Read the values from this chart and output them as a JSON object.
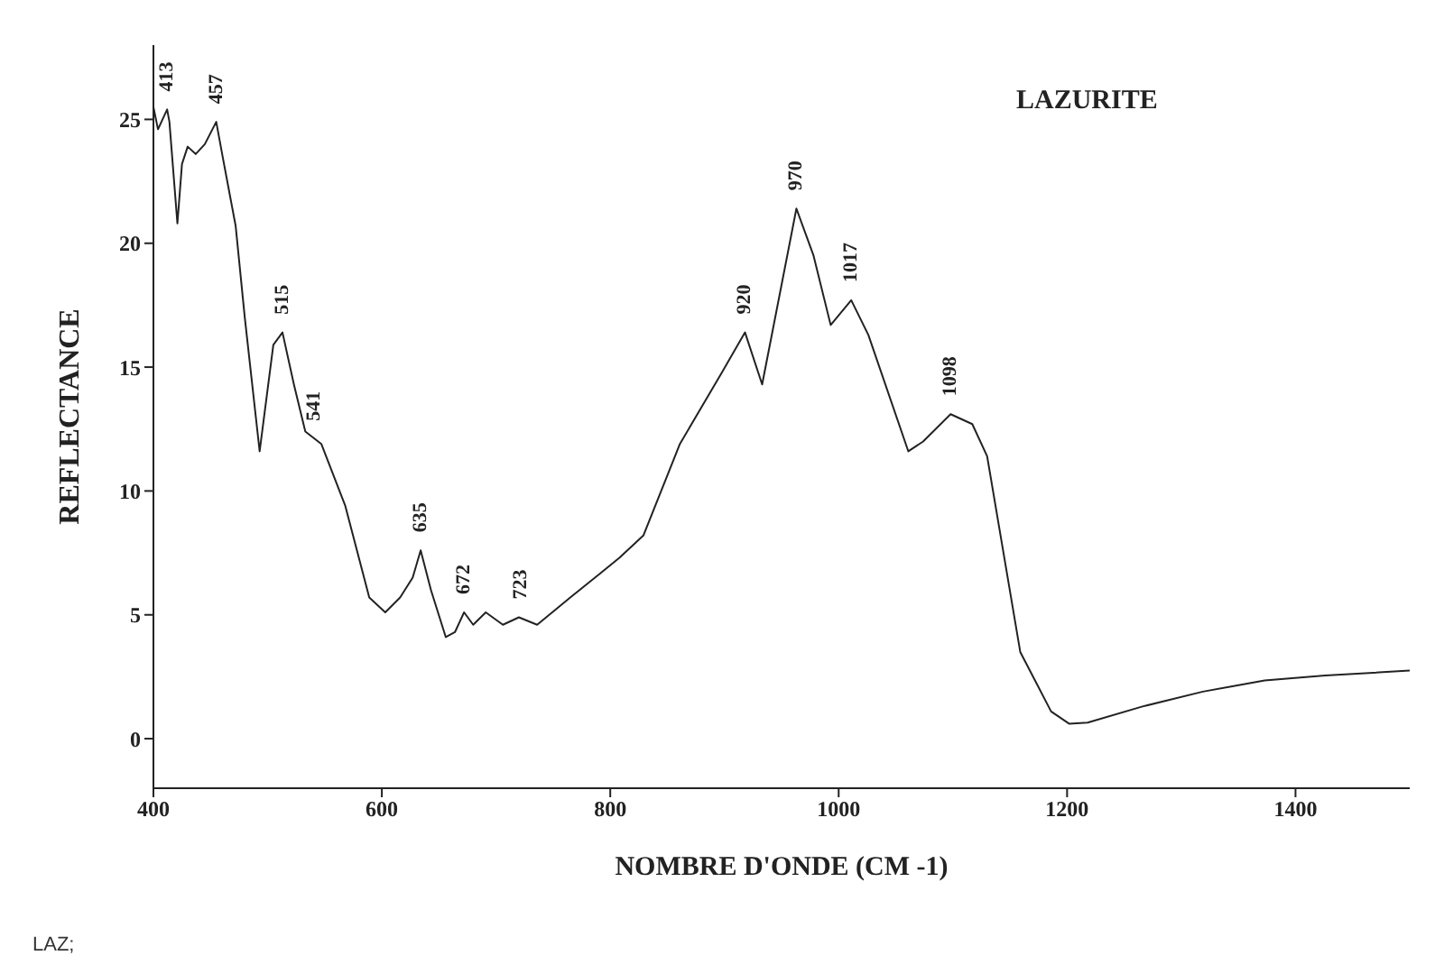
{
  "chart_data": {
    "type": "line",
    "title": "LAZURITE",
    "xlabel": "NOMBRE D'ONDE (CM -1)",
    "ylabel": "REFLECTANCE",
    "xlim": [
      400,
      1500
    ],
    "xticks": [
      400,
      600,
      800,
      1000,
      1200,
      1400
    ],
    "ylim": [
      -2,
      28
    ],
    "yticks": [
      0,
      5,
      10,
      15,
      20,
      25
    ],
    "grid": false,
    "series": [
      {
        "color": "#222222",
        "x": [
          400,
          404,
          412,
          414,
          421,
          425,
          430,
          437,
          445,
          455,
          461,
          472,
          480,
          493,
          505,
          513,
          523,
          533,
          547,
          568,
          589,
          603,
          616,
          627,
          634,
          643,
          656,
          664,
          672,
          680,
          691,
          706,
          720,
          736,
          765,
          792,
          808,
          829,
          861,
          898,
          918,
          933,
          963,
          978,
          993,
          1011,
          1026,
          1061,
          1074,
          1098,
          1117,
          1130,
          1159,
          1186,
          1202,
          1218,
          1266,
          1319,
          1373,
          1426,
          1500
        ],
        "values": [
          25.5,
          24.6,
          25.4,
          24.9,
          20.8,
          23.2,
          23.9,
          23.6,
          24.0,
          24.9,
          23.4,
          20.7,
          17.0,
          11.6,
          15.9,
          16.4,
          14.3,
          12.4,
          11.9,
          9.4,
          5.7,
          5.1,
          5.7,
          6.5,
          7.6,
          6.0,
          4.1,
          4.3,
          5.1,
          4.6,
          5.1,
          4.6,
          4.9,
          4.6,
          5.7,
          6.7,
          7.3,
          8.2,
          11.9,
          14.8,
          16.4,
          14.3,
          21.4,
          19.5,
          16.7,
          17.7,
          16.3,
          11.6,
          12.0,
          13.1,
          12.7,
          11.4,
          3.5,
          1.1,
          0.6,
          0.65,
          1.3,
          1.9,
          2.35,
          2.55,
          2.75
        ]
      }
    ],
    "annotations": [
      {
        "text": "413",
        "x": 412,
        "y": 25.4
      },
      {
        "text": "457",
        "x": 455,
        "y": 24.9
      },
      {
        "text": "515",
        "x": 513,
        "y": 16.4
      },
      {
        "text": "541",
        "x": 541,
        "y": 12.1
      },
      {
        "text": "635",
        "x": 634,
        "y": 7.6
      },
      {
        "text": "672",
        "x": 672,
        "y": 5.1
      },
      {
        "text": "723",
        "x": 722,
        "y": 4.9
      },
      {
        "text": "920",
        "x": 918,
        "y": 16.4
      },
      {
        "text": "970",
        "x": 963,
        "y": 21.4
      },
      {
        "text": "1017",
        "x": 1011,
        "y": 17.7
      },
      {
        "text": "1098",
        "x": 1098,
        "y": 13.1
      },
      "LAZ;"
    ]
  }
}
